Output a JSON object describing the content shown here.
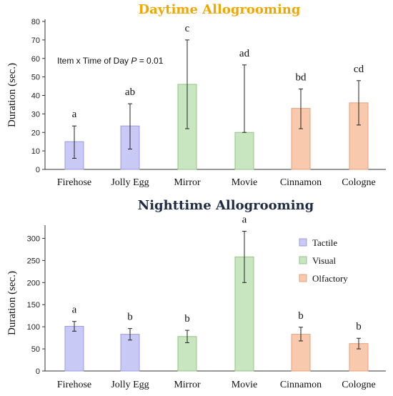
{
  "colors": {
    "tactile": "#c9c9f5",
    "tactile_edge": "#9c9ce0",
    "visual": "#c8e6bf",
    "visual_edge": "#94c487",
    "olfactory": "#f8c9ad",
    "olfactory_edge": "#e6a37e",
    "day_title": "#f0a800",
    "night_title": "#1f2a44"
  },
  "chart_data": [
    {
      "type": "bar",
      "title": "Daytime Allogrooming",
      "xlabel": "",
      "ylabel": "Duration (sec.)",
      "ylim": [
        0,
        80
      ],
      "yticks": [
        0,
        10,
        20,
        30,
        40,
        50,
        60,
        70,
        80
      ],
      "categories": [
        "Firehose",
        "Jolly Egg",
        "Mirror",
        "Movie",
        "Cinnamon",
        "Cologne"
      ],
      "groups": [
        "tactile",
        "tactile",
        "visual",
        "visual",
        "olfactory",
        "olfactory"
      ],
      "values": [
        15,
        23.5,
        46,
        20,
        33,
        36
      ],
      "err_low": [
        6,
        11,
        22,
        20,
        22,
        24
      ],
      "err_high": [
        23.5,
        35.5,
        70,
        56.5,
        43.5,
        48
      ],
      "letters": [
        "a",
        "ab",
        "c",
        "ad",
        "bd",
        "cd"
      ],
      "annotation": {
        "prefix": "Item x Time of Day ",
        "p": "P",
        "suffix": " = 0.01"
      },
      "grid": false
    },
    {
      "type": "bar",
      "title": "Nighttime Allogrooming",
      "xlabel": "",
      "ylabel": "Duration (sec.)",
      "ylim": [
        0,
        325
      ],
      "yticks": [
        0,
        50,
        100,
        150,
        200,
        250,
        300
      ],
      "categories": [
        "Firehose",
        "Jolly Egg",
        "Mirror",
        "Movie",
        "Cinnamon",
        "Cologne"
      ],
      "groups": [
        "tactile",
        "tactile",
        "visual",
        "visual",
        "olfactory",
        "olfactory"
      ],
      "values": [
        101,
        83,
        78,
        258,
        83,
        62
      ],
      "err_low": [
        90,
        70,
        64,
        200,
        68,
        50
      ],
      "err_high": [
        112,
        96,
        92,
        316,
        99,
        74
      ],
      "letters": [
        "a",
        "b",
        "b",
        "a",
        "b",
        "b"
      ],
      "legend": {
        "position": "top-right",
        "entries": [
          "Tactile",
          "Visual",
          "Olfactory"
        ]
      },
      "grid": false
    }
  ]
}
